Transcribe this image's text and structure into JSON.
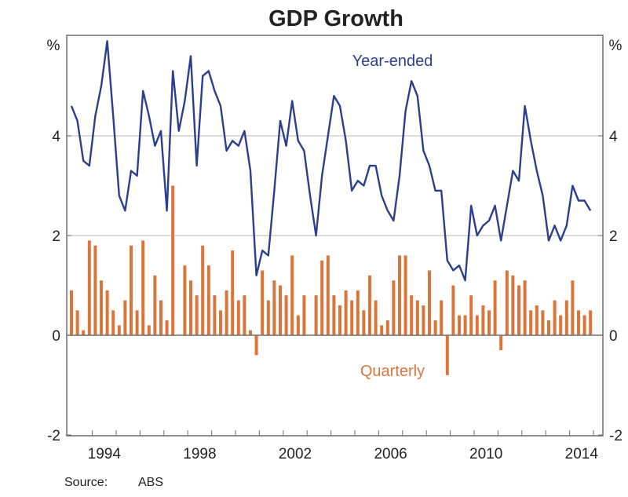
{
  "chart_data": {
    "type": "bar+line",
    "title": "GDP Growth",
    "ylabel_left": "%",
    "ylabel_right": "%",
    "ylim": [
      -2,
      6
    ],
    "yticks": [
      -2,
      0,
      2,
      4
    ],
    "ytick_labels": [
      "-2",
      "0",
      "2",
      "4"
    ],
    "xlim": [
      "1993-Q1",
      "2015-Q2"
    ],
    "xticks_years": [
      1994,
      1998,
      2002,
      2006,
      2010,
      2014
    ],
    "xtick_labels": [
      "1994",
      "1998",
      "2002",
      "2006",
      "2010",
      "2014"
    ],
    "grid": true,
    "x_start": "1993-Q1",
    "frequency": "quarterly",
    "colors": {
      "year_ended": "#2b3f8e",
      "quarterly": "#d9763c",
      "grid": "#c8c8c8",
      "axis": "#6e6e6e"
    },
    "series": [
      {
        "name": "Year-ended",
        "type": "line",
        "values": [
          4.6,
          4.3,
          3.5,
          3.4,
          4.4,
          5.0,
          5.9,
          4.4,
          2.8,
          2.5,
          3.3,
          3.2,
          4.9,
          4.4,
          3.8,
          4.1,
          2.5,
          5.3,
          4.1,
          4.7,
          5.6,
          3.4,
          5.2,
          5.3,
          4.9,
          4.6,
          3.7,
          3.9,
          3.8,
          4.1,
          3.3,
          1.2,
          1.7,
          1.6,
          2.9,
          4.3,
          3.8,
          4.7,
          3.9,
          3.7,
          2.8,
          2.0,
          3.2,
          4.0,
          4.8,
          4.6,
          3.9,
          2.9,
          3.1,
          3.0,
          3.4,
          3.4,
          2.8,
          2.5,
          2.3,
          3.2,
          4.5,
          5.1,
          4.8,
          3.7,
          3.4,
          2.9,
          2.9,
          1.5,
          1.3,
          1.4,
          1.1,
          2.6,
          2.0,
          2.2,
          2.3,
          2.6,
          1.9,
          2.6,
          3.3,
          3.1,
          4.6,
          3.9,
          3.3,
          2.8,
          1.9,
          2.2,
          1.9,
          2.2,
          3.0,
          2.7,
          2.7,
          2.5
        ]
      },
      {
        "name": "Quarterly",
        "type": "bar",
        "values": [
          0.9,
          0.5,
          0.1,
          1.9,
          1.8,
          1.1,
          0.9,
          0.5,
          0.2,
          0.7,
          1.8,
          0.5,
          1.9,
          0.2,
          1.2,
          0.7,
          0.3,
          3.0,
          0.0,
          1.4,
          1.1,
          0.8,
          1.8,
          1.4,
          0.8,
          0.5,
          0.9,
          1.7,
          0.7,
          0.8,
          0.1,
          -0.4,
          1.3,
          0.7,
          1.1,
          1.0,
          0.8,
          1.6,
          0.4,
          0.8,
          0.0,
          0.8,
          1.5,
          1.6,
          0.8,
          0.6,
          0.9,
          0.7,
          0.9,
          0.5,
          1.2,
          0.7,
          0.2,
          0.3,
          1.1,
          1.6,
          1.6,
          0.8,
          0.7,
          0.6,
          1.3,
          0.3,
          0.7,
          -0.8,
          1.0,
          0.4,
          0.4,
          0.8,
          0.4,
          0.6,
          0.5,
          1.1,
          -0.3,
          1.3,
          1.2,
          1.0,
          1.1,
          0.5,
          0.6,
          0.5,
          0.3,
          0.7,
          0.4,
          0.7,
          1.1,
          0.5,
          0.4,
          0.5
        ]
      }
    ]
  },
  "source": {
    "label": "Source:",
    "value": "ABS"
  }
}
